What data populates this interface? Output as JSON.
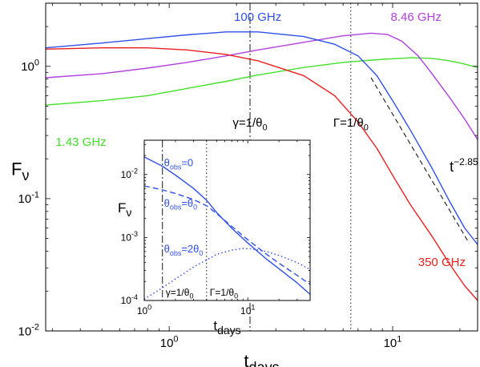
{
  "chart_data": [
    {
      "id": "main",
      "type": "line",
      "xscale": "log",
      "yscale": "log",
      "xlim": [
        0.28,
        24
      ],
      "ylim": [
        0.01,
        3
      ],
      "grid": false,
      "legend": "none",
      "xlabel_base": "t",
      "xlabel_sub": "days",
      "ylabel_base": "F",
      "ylabel_sub": "ν",
      "xticks": [
        {
          "value": 1,
          "base": "10",
          "exp": "0"
        },
        {
          "value": 10,
          "base": "10",
          "exp": "1"
        }
      ],
      "yticks": [
        {
          "value": 0.01,
          "base": "10",
          "exp": "-2"
        },
        {
          "value": 0.1,
          "base": "10",
          "exp": "-1"
        },
        {
          "value": 1,
          "base": "10",
          "exp": "0"
        }
      ],
      "vlines": [
        {
          "x": 2.3,
          "style": "dashdot",
          "label": "γ=1/θ",
          "sub": "0"
        },
        {
          "x": 6.5,
          "style": "dotted",
          "label": "Γ=1/θ",
          "sub": "0"
        }
      ],
      "series": [
        {
          "name": "1.43 GHz",
          "color": "#44e02a",
          "points": [
            [
              0.28,
              0.51
            ],
            [
              0.5,
              0.55
            ],
            [
              0.8,
              0.6
            ],
            [
              1.2,
              0.68
            ],
            [
              1.8,
              0.77
            ],
            [
              2.5,
              0.86
            ],
            [
              4,
              0.98
            ],
            [
              6,
              1.07
            ],
            [
              9,
              1.13
            ],
            [
              12,
              1.16
            ],
            [
              15,
              1.15
            ],
            [
              18,
              1.1
            ],
            [
              20,
              1.06
            ],
            [
              22,
              1.02
            ],
            [
              24,
              0.98
            ]
          ]
        },
        {
          "name": "8.46 GHz",
          "color": "#b040e0",
          "points": [
            [
              0.28,
              0.82
            ],
            [
              0.5,
              0.88
            ],
            [
              0.8,
              0.97
            ],
            [
              1.2,
              1.07
            ],
            [
              1.8,
              1.2
            ],
            [
              2.5,
              1.33
            ],
            [
              4,
              1.52
            ],
            [
              6,
              1.7
            ],
            [
              8,
              1.78
            ],
            [
              9.5,
              1.74
            ],
            [
              11,
              1.55
            ],
            [
              13,
              1.2
            ],
            [
              15,
              0.88
            ],
            [
              18,
              0.58
            ],
            [
              21,
              0.4
            ],
            [
              24,
              0.28
            ]
          ]
        },
        {
          "name": "100 GHz",
          "color": "#3050e8",
          "points": [
            [
              0.28,
              1.38
            ],
            [
              0.5,
              1.5
            ],
            [
              0.8,
              1.62
            ],
            [
              1.2,
              1.73
            ],
            [
              1.8,
              1.82
            ],
            [
              2.5,
              1.82
            ],
            [
              4,
              1.68
            ],
            [
              5.5,
              1.47
            ],
            [
              7,
              1.2
            ],
            [
              8.5,
              0.85
            ],
            [
              10,
              0.55
            ],
            [
              12,
              0.33
            ],
            [
              15,
              0.17
            ],
            [
              18,
              0.095
            ],
            [
              21,
              0.06
            ],
            [
              24,
              0.045
            ]
          ]
        },
        {
          "name": "350 GHz",
          "color": "#e82020",
          "points": [
            [
              0.28,
              1.35
            ],
            [
              0.5,
              1.38
            ],
            [
              0.8,
              1.38
            ],
            [
              1.2,
              1.33
            ],
            [
              1.8,
              1.23
            ],
            [
              2.5,
              1.1
            ],
            [
              4,
              0.85
            ],
            [
              5.5,
              0.6
            ],
            [
              7,
              0.38
            ],
            [
              8.5,
              0.24
            ],
            [
              10,
              0.15
            ],
            [
              12,
              0.09
            ],
            [
              15,
              0.052
            ],
            [
              18,
              0.032
            ],
            [
              21,
              0.022
            ],
            [
              24,
              0.017
            ]
          ]
        },
        {
          "name": "t",
          "exp": "−2.85",
          "color": "#000000",
          "dash": true,
          "points": [
            [
              8.0,
              0.82
            ],
            [
              22.0,
              0.046
            ]
          ]
        }
      ],
      "annotations": [
        {
          "text": "100 GHz",
          "x": 1.95,
          "y": 2.2,
          "color": "#3050e8"
        },
        {
          "text": "8.46 GHz",
          "x": 9.8,
          "y": 2.2,
          "color": "#b040e0"
        },
        {
          "text": "1.43 GHz",
          "x": 0.31,
          "y": 0.25,
          "color": "#44e02a"
        },
        {
          "text": "350 GHz",
          "x": 13.0,
          "y": 0.031,
          "color": "#e82020"
        },
        {
          "text": "t",
          "exp": "−2.85",
          "x": 18.0,
          "y": 0.16,
          "color": "#000000"
        }
      ]
    },
    {
      "id": "inset",
      "type": "line",
      "xscale": "log",
      "yscale": "log",
      "xlim": [
        1,
        40
      ],
      "ylim": [
        0.0001,
        0.035
      ],
      "grid": false,
      "legend": "none",
      "xlabel_base": "t",
      "xlabel_sub": "days",
      "ylabel_base": "F",
      "ylabel_sub": "ν",
      "xticks": [
        {
          "value": 1,
          "base": "10",
          "exp": "0"
        },
        {
          "value": 10,
          "base": "10",
          "exp": "1"
        }
      ],
      "yticks": [
        {
          "value": 0.0001,
          "base": "10",
          "exp": "-4"
        },
        {
          "value": 0.001,
          "base": "10",
          "exp": "-3"
        },
        {
          "value": 0.01,
          "base": "10",
          "exp": "-2"
        }
      ],
      "vlines": [
        {
          "x": 1.5,
          "style": "dashdot",
          "label": "γ=1/θ",
          "sub": "0"
        },
        {
          "x": 4.0,
          "style": "dotted",
          "label": "Γ=1/θ",
          "sub": "0"
        }
      ],
      "series": [
        {
          "name": "θobs=0",
          "style": "solid",
          "color": "#3050e8",
          "points": [
            [
              1,
              0.019
            ],
            [
              1.5,
              0.0135
            ],
            [
              2,
              0.0098
            ],
            [
              3,
              0.006
            ],
            [
              4,
              0.0039
            ],
            [
              5,
              0.0025
            ],
            [
              7,
              0.0014
            ],
            [
              10,
              0.00082
            ],
            [
              15,
              0.00046
            ],
            [
              20,
              0.00032
            ],
            [
              30,
              0.00019
            ],
            [
              40,
              0.000125
            ]
          ]
        },
        {
          "name": "θobs=θ0",
          "style": "dashed",
          "color": "#3050e8",
          "points": [
            [
              1,
              0.0066
            ],
            [
              1.5,
              0.0057
            ],
            [
              2,
              0.005
            ],
            [
              3,
              0.004
            ],
            [
              4,
              0.0032
            ],
            [
              5,
              0.0024
            ],
            [
              7,
              0.0015
            ],
            [
              10,
              0.00092
            ],
            [
              15,
              0.00055
            ],
            [
              20,
              0.00039
            ],
            [
              30,
              0.00025
            ],
            [
              40,
              0.00018
            ]
          ]
        },
        {
          "name": "θobs=2θ0",
          "style": "dotted",
          "color": "#3050e8",
          "points": [
            [
              1,
              0.000105
            ],
            [
              1.5,
              0.00016
            ],
            [
              2,
              0.00022
            ],
            [
              3,
              0.00034
            ],
            [
              4,
              0.00044
            ],
            [
              5,
              0.00054
            ],
            [
              7,
              0.00063
            ],
            [
              9,
              0.00067
            ],
            [
              11,
              0.00066
            ],
            [
              15,
              0.0006
            ],
            [
              20,
              0.00052
            ],
            [
              30,
              0.0004
            ],
            [
              40,
              0.00031
            ]
          ]
        }
      ],
      "annotations": [
        {
          "text": "θ",
          "sub": "obs",
          "tail": "=0",
          "x": 1.55,
          "y": 0.0135,
          "color": "#3050e8"
        },
        {
          "text": "θ",
          "sub": "obs",
          "tail": "=θ",
          "tailsub": "0",
          "x": 1.55,
          "y": 0.0031,
          "color": "#3050e8"
        },
        {
          "text": "θ",
          "sub": "obs",
          "tail": "=2θ",
          "tailsub": "0",
          "x": 1.55,
          "y": 0.00058,
          "color": "#3050e8"
        }
      ]
    }
  ]
}
